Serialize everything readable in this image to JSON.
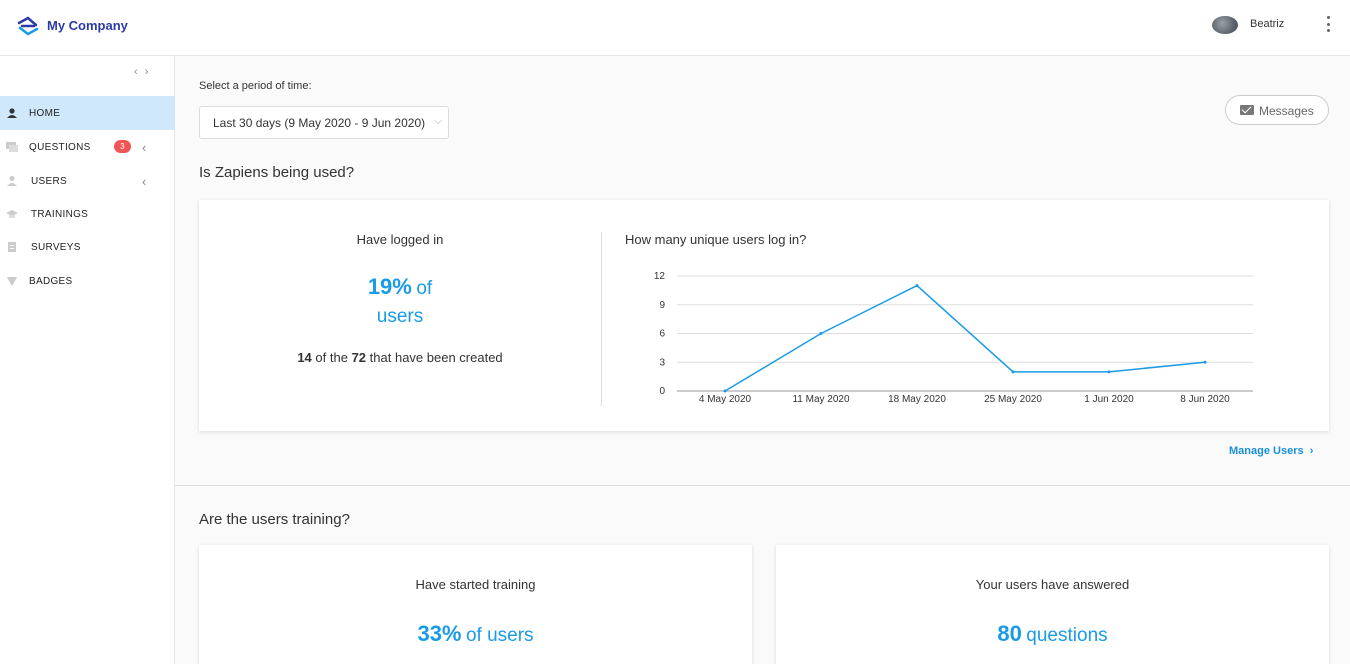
{
  "header": {
    "brand": "My Company",
    "user_name": "Beatriz",
    "logo_icon": "company-logo-icon",
    "menu_icon": "more-vert-icon"
  },
  "sidebar": {
    "items": [
      {
        "label": "HOME",
        "icon": "user-circle-icon",
        "active": true
      },
      {
        "label": "QUESTIONS",
        "icon": "chat-icon",
        "badge": "3",
        "expandable": true
      },
      {
        "label": "USERS",
        "icon": "user-icon",
        "expandable": true
      },
      {
        "label": "TRAININGS",
        "icon": "graduation-cap-icon"
      },
      {
        "label": "SURVEYS",
        "icon": "clipboard-icon"
      },
      {
        "label": "BADGES",
        "icon": "badge-icon"
      }
    ]
  },
  "main": {
    "period_label": "Select a period of time:",
    "period_value": "Last 30 days (9 May 2020 - 9 Jun 2020)",
    "messages_label": "Messages",
    "section1_title": "Is Zapiens being used?",
    "logged": {
      "heading": "Have logged in",
      "percent": "19%",
      "of": "of",
      "users": "users",
      "count": "14",
      "of_the": "of the",
      "total": "72",
      "suffix": "that have been created"
    },
    "chart_title": "How many unique users log in?",
    "manage_link": "Manage Users",
    "section2_title": "Are the users training?",
    "training": {
      "heading": "Have started training",
      "percent": "33%",
      "suffix": "of users"
    },
    "answered": {
      "heading": "Your users have answered",
      "value": "80",
      "suffix": "questions"
    }
  },
  "colors": {
    "accent": "#1a9be6",
    "active_bg": "#cfe8fc",
    "badge": "#f05454",
    "brand": "#2d3aa8"
  },
  "chart_data": {
    "type": "line",
    "title": "How many unique users log in?",
    "x": [
      "4 May 2020",
      "11 May 2020",
      "18 May 2020",
      "25 May 2020",
      "1 Jun 2020",
      "8 Jun 2020"
    ],
    "series": [
      {
        "values": [
          0,
          6,
          11,
          2,
          2,
          3
        ]
      }
    ],
    "ylim": [
      0,
      12
    ],
    "yticks": [
      0,
      3,
      6,
      9,
      12
    ],
    "grid": true,
    "color": "#1a9be6"
  }
}
